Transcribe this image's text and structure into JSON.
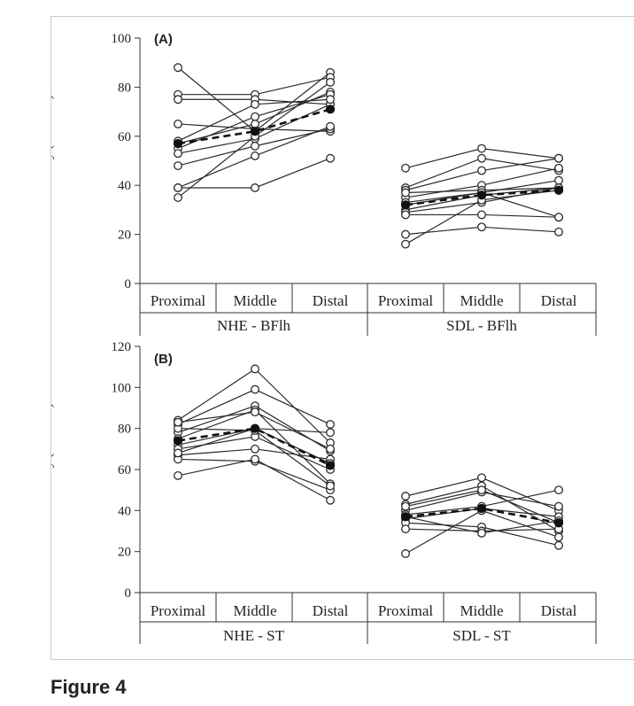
{
  "caption": "Figure 4",
  "chart_data": [
    {
      "type": "line",
      "panel_label": "(A)",
      "ylabel": "EMG activity (%MVIC)",
      "ylim": [
        0,
        100
      ],
      "yticks": [
        0,
        20,
        40,
        60,
        80,
        100
      ],
      "categories": [
        "Proximal",
        "Middle",
        "Distal"
      ],
      "groups": [
        {
          "name": "NHE - BFlh",
          "series": [
            {
              "values": [
                88,
                62,
                86
              ]
            },
            {
              "values": [
                77,
                77,
                84
              ]
            },
            {
              "values": [
                75,
                75,
                73
              ]
            },
            {
              "values": [
                65,
                63,
                62
              ]
            },
            {
              "values": [
                57,
                65,
                78
              ]
            },
            {
              "values": [
                55,
                68,
                77
              ]
            },
            {
              "values": [
                53,
                59,
                73
              ]
            },
            {
              "values": [
                48,
                56,
                63
              ]
            },
            {
              "values": [
                39,
                52,
                64
              ]
            },
            {
              "values": [
                35,
                60,
                82
              ]
            },
            {
              "values": [
                58,
                73,
                75
              ]
            },
            {
              "values": [
                39,
                39,
                51
              ]
            }
          ],
          "mean": [
            57,
            62,
            71
          ]
        },
        {
          "name": "SDL - BFlh",
          "series": [
            {
              "values": [
                47,
                55,
                51
              ]
            },
            {
              "values": [
                39,
                51,
                46
              ]
            },
            {
              "values": [
                38,
                46,
                51
              ]
            },
            {
              "values": [
                35,
                40,
                47
              ]
            },
            {
              "values": [
                33,
                37,
                42
              ]
            },
            {
              "values": [
                30,
                36,
                39
              ]
            },
            {
              "values": [
                29,
                33,
                39
              ]
            },
            {
              "values": [
                28,
                28,
                27
              ]
            },
            {
              "values": [
                20,
                23,
                21
              ]
            },
            {
              "values": [
                16,
                34,
                38
              ]
            },
            {
              "values": [
                37,
                38,
                39
              ]
            },
            {
              "values": [
                32,
                37,
                27
              ]
            }
          ],
          "mean": [
            32,
            36,
            38
          ]
        }
      ]
    },
    {
      "type": "line",
      "panel_label": "(B)",
      "ylabel": "EMG activity (%MVIC)",
      "ylim": [
        0,
        120
      ],
      "yticks": [
        0,
        20,
        40,
        60,
        80,
        100,
        120
      ],
      "categories": [
        "Proximal",
        "Middle",
        "Distal"
      ],
      "groups": [
        {
          "name": "NHE - ST",
          "series": [
            {
              "values": [
                84,
                109,
                73
              ]
            },
            {
              "values": [
                82,
                99,
                82
              ]
            },
            {
              "values": [
                78,
                91,
                69
              ]
            },
            {
              "values": [
                75,
                89,
                53
              ]
            },
            {
              "values": [
                72,
                80,
                78
              ]
            },
            {
              "values": [
                70,
                76,
                60
              ]
            },
            {
              "values": [
                67,
                70,
                65
              ]
            },
            {
              "values": [
                65,
                64,
                50
              ]
            },
            {
              "values": [
                57,
                65,
                45
              ]
            },
            {
              "values": [
                80,
                79,
                52
              ]
            },
            {
              "values": [
                68,
                80,
                63
              ]
            },
            {
              "values": [
                83,
                88,
                70
              ]
            }
          ],
          "mean": [
            74,
            80,
            62
          ]
        },
        {
          "name": "SDL - ST",
          "series": [
            {
              "values": [
                47,
                56,
                40
              ]
            },
            {
              "values": [
                43,
                52,
                30
              ]
            },
            {
              "values": [
                40,
                49,
                42
              ]
            },
            {
              "values": [
                38,
                42,
                50
              ]
            },
            {
              "values": [
                36,
                41,
                37
              ]
            },
            {
              "values": [
                34,
                32,
                23
              ]
            },
            {
              "values": [
                31,
                30,
                31
              ]
            },
            {
              "values": [
                19,
                40,
                27
              ]
            },
            {
              "values": [
                42,
                50,
                34
              ]
            },
            {
              "values": [
                37,
                29,
                35
              ]
            }
          ],
          "mean": [
            37,
            41,
            34
          ]
        }
      ]
    }
  ]
}
